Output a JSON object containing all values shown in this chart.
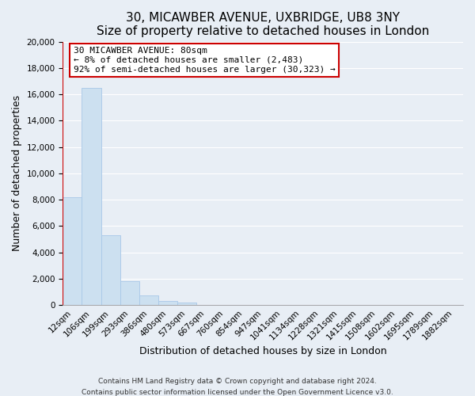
{
  "title": "30, MICAWBER AVENUE, UXBRIDGE, UB8 3NY",
  "subtitle": "Size of property relative to detached houses in London",
  "xlabel": "Distribution of detached houses by size in London",
  "ylabel": "Number of detached properties",
  "bar_labels": [
    "12sqm",
    "106sqm",
    "199sqm",
    "293sqm",
    "386sqm",
    "480sqm",
    "573sqm",
    "667sqm",
    "760sqm",
    "854sqm",
    "947sqm",
    "1041sqm",
    "1134sqm",
    "1228sqm",
    "1321sqm",
    "1415sqm",
    "1508sqm",
    "1602sqm",
    "1695sqm",
    "1789sqm",
    "1882sqm"
  ],
  "bar_values": [
    8200,
    16500,
    5300,
    1800,
    750,
    280,
    200,
    0,
    0,
    0,
    0,
    0,
    0,
    0,
    0,
    0,
    0,
    0,
    0,
    0,
    0
  ],
  "bar_color": "#cce0f0",
  "bar_edge_color": "#a8c8e8",
  "ylim": [
    0,
    20000
  ],
  "yticks": [
    0,
    2000,
    4000,
    6000,
    8000,
    10000,
    12000,
    14000,
    16000,
    18000,
    20000
  ],
  "property_line_color": "#cc0000",
  "annotation_line1": "30 MICAWBER AVENUE: 80sqm",
  "annotation_line2": "← 8% of detached houses are smaller (2,483)",
  "annotation_line3": "92% of semi-detached houses are larger (30,323) →",
  "annotation_box_facecolor": "#ffffff",
  "annotation_box_edgecolor": "#cc0000",
  "background_color": "#e8eef5",
  "grid_color": "#ffffff",
  "footer_line1": "Contains HM Land Registry data © Crown copyright and database right 2024.",
  "footer_line2": "Contains public sector information licensed under the Open Government Licence v3.0.",
  "title_fontsize": 11,
  "subtitle_fontsize": 10,
  "axis_label_fontsize": 9,
  "tick_fontsize": 7.5,
  "annotation_fontsize": 8,
  "footer_fontsize": 6.5
}
